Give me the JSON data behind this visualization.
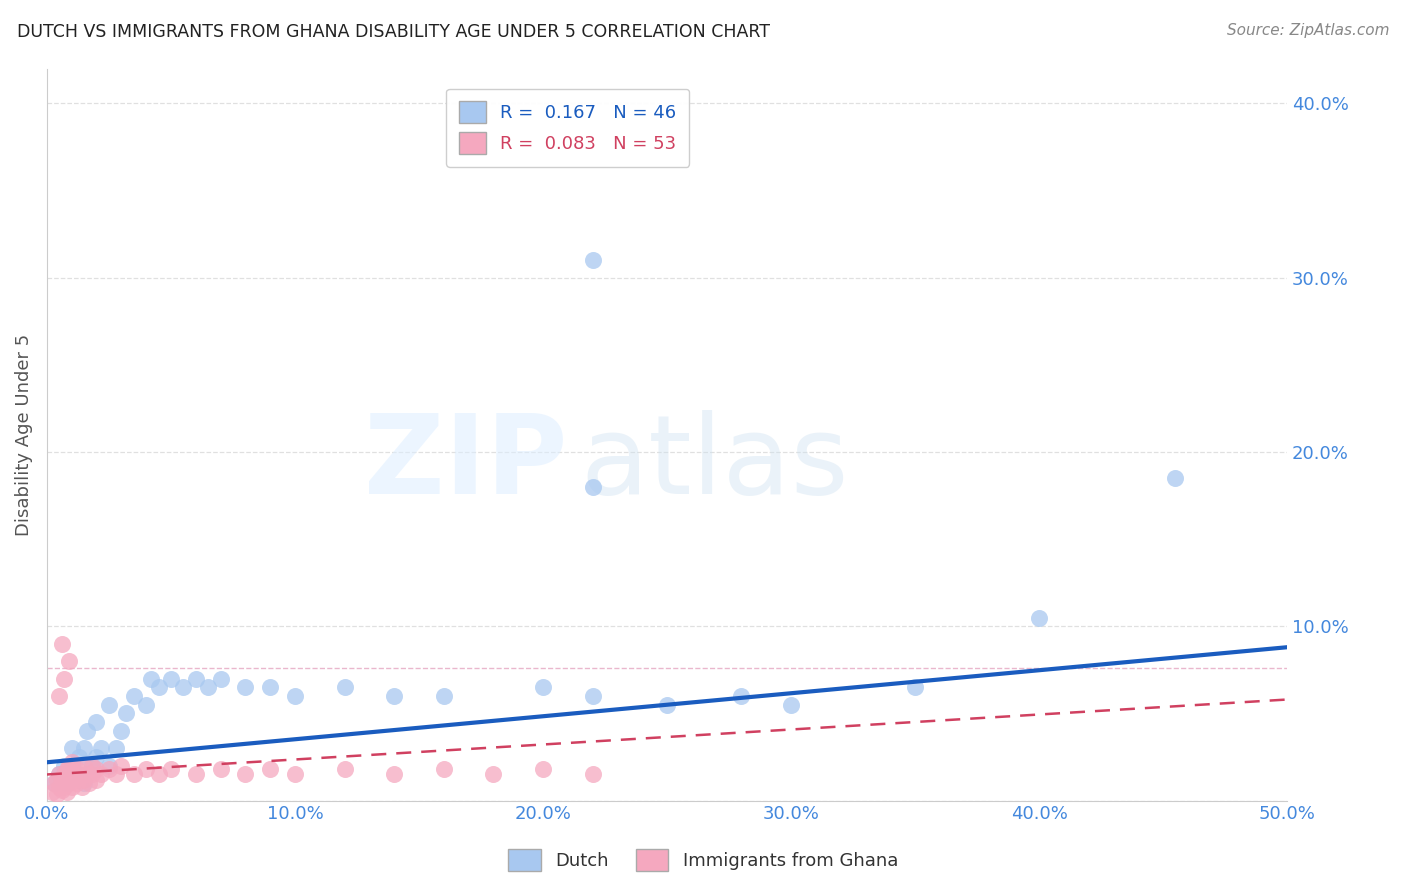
{
  "title": "DUTCH VS IMMIGRANTS FROM GHANA DISABILITY AGE UNDER 5 CORRELATION CHART",
  "source": "Source: ZipAtlas.com",
  "ylabel": "Disability Age Under 5",
  "xlim": [
    0.0,
    0.5
  ],
  "ylim": [
    0.0,
    0.42
  ],
  "xticks": [
    0.0,
    0.1,
    0.2,
    0.3,
    0.4,
    0.5
  ],
  "xticklabels": [
    "0.0%",
    "10.0%",
    "20.0%",
    "30.0%",
    "40.0%",
    "50.0%"
  ],
  "yticks": [
    0.0,
    0.1,
    0.2,
    0.3,
    0.4
  ],
  "yticklabels_right": [
    "",
    "10.0%",
    "20.0%",
    "30.0%",
    "40.0%"
  ],
  "dutch_R": 0.167,
  "dutch_N": 46,
  "ghana_R": 0.083,
  "ghana_N": 53,
  "dutch_color": "#a8c8f0",
  "ghana_color": "#f5a8bf",
  "dutch_line_color": "#1a5cbf",
  "ghana_line_color": "#d04060",
  "tick_color": "#4488dd",
  "dutch_x": [
    0.003,
    0.005,
    0.007,
    0.008,
    0.009,
    0.01,
    0.01,
    0.012,
    0.013,
    0.015,
    0.015,
    0.016,
    0.018,
    0.02,
    0.02,
    0.022,
    0.025,
    0.025,
    0.028,
    0.03,
    0.032,
    0.035,
    0.04,
    0.042,
    0.045,
    0.05,
    0.055,
    0.06,
    0.065,
    0.07,
    0.08,
    0.09,
    0.1,
    0.12,
    0.14,
    0.16,
    0.2,
    0.22,
    0.25,
    0.28,
    0.3,
    0.35,
    0.4,
    0.455,
    0.22,
    0.22
  ],
  "dutch_y": [
    0.01,
    0.015,
    0.02,
    0.01,
    0.015,
    0.02,
    0.03,
    0.015,
    0.025,
    0.01,
    0.03,
    0.04,
    0.02,
    0.025,
    0.045,
    0.03,
    0.02,
    0.055,
    0.03,
    0.04,
    0.05,
    0.06,
    0.055,
    0.07,
    0.065,
    0.07,
    0.065,
    0.07,
    0.065,
    0.07,
    0.065,
    0.065,
    0.06,
    0.065,
    0.06,
    0.06,
    0.065,
    0.06,
    0.055,
    0.06,
    0.055,
    0.065,
    0.105,
    0.185,
    0.18,
    0.31
  ],
  "ghana_x": [
    0.002,
    0.003,
    0.004,
    0.004,
    0.005,
    0.005,
    0.006,
    0.006,
    0.007,
    0.007,
    0.008,
    0.008,
    0.009,
    0.009,
    0.01,
    0.01,
    0.01,
    0.011,
    0.012,
    0.012,
    0.013,
    0.014,
    0.015,
    0.015,
    0.016,
    0.017,
    0.018,
    0.018,
    0.02,
    0.02,
    0.022,
    0.025,
    0.028,
    0.03,
    0.035,
    0.04,
    0.045,
    0.05,
    0.06,
    0.07,
    0.08,
    0.09,
    0.1,
    0.12,
    0.14,
    0.16,
    0.18,
    0.2,
    0.22,
    0.005,
    0.007,
    0.009,
    0.006
  ],
  "ghana_y": [
    0.005,
    0.01,
    0.004,
    0.012,
    0.008,
    0.015,
    0.006,
    0.012,
    0.008,
    0.015,
    0.005,
    0.018,
    0.01,
    0.02,
    0.008,
    0.015,
    0.022,
    0.012,
    0.01,
    0.018,
    0.015,
    0.008,
    0.012,
    0.02,
    0.015,
    0.01,
    0.015,
    0.02,
    0.012,
    0.018,
    0.015,
    0.018,
    0.015,
    0.02,
    0.015,
    0.018,
    0.015,
    0.018,
    0.015,
    0.018,
    0.015,
    0.018,
    0.015,
    0.018,
    0.015,
    0.018,
    0.015,
    0.018,
    0.015,
    0.06,
    0.07,
    0.08,
    0.09
  ],
  "dutch_trend": [
    0.022,
    0.088
  ],
  "ghana_trend": [
    0.015,
    0.058
  ],
  "hline_y": 0.076,
  "hline_color": "#e8b0c8"
}
